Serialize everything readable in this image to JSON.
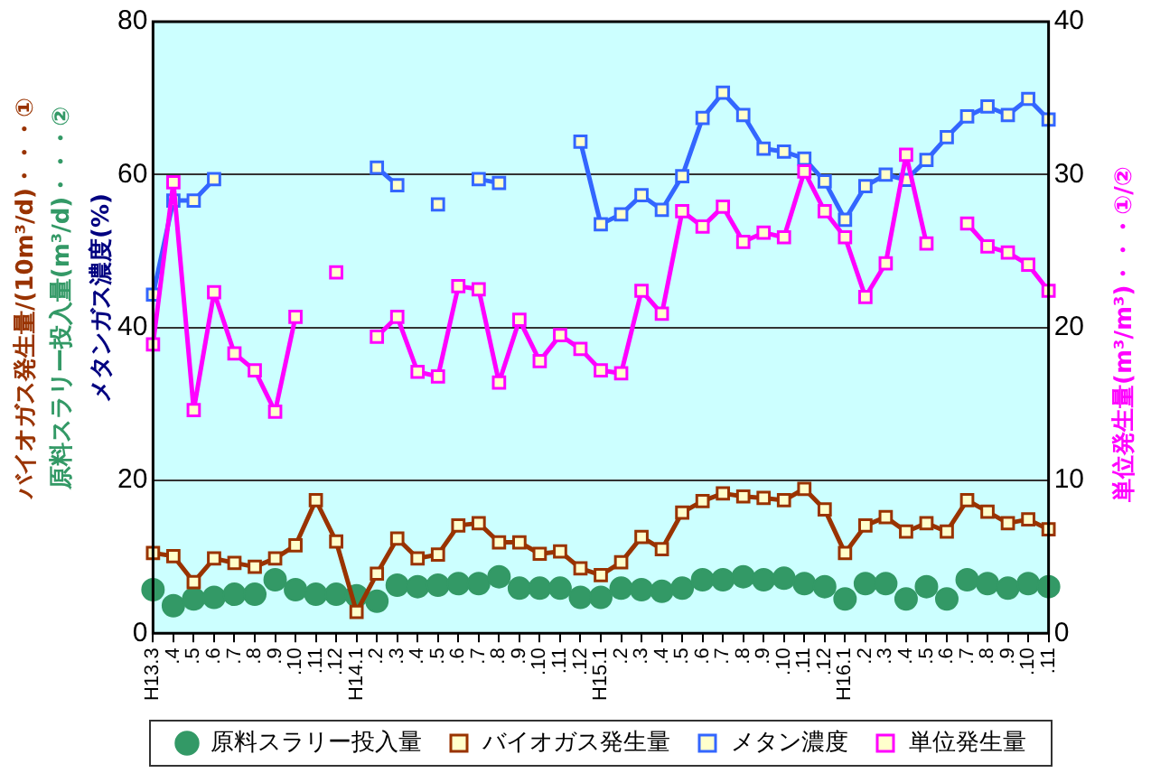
{
  "chart_data": {
    "type": "line",
    "ylabel": [
      "バイオガス発生量/(10m³/d)・・・①",
      "原料スラリー投入量(m³/d)・・・②",
      "メタンガス濃度(%)"
    ],
    "y2label": "単位発生量(m³/m³)・・・①/②",
    "categories": [
      "H13.3",
      ".4",
      ".5",
      ".6",
      ".7",
      ".8",
      ".9",
      ".10",
      ".11",
      ".12",
      "H14.1",
      ".2",
      ".3",
      ".4",
      ".5",
      ".6",
      ".7",
      ".8",
      ".9",
      ".10",
      ".11",
      ".12",
      "H15.1",
      ".2",
      ".3",
      ".4",
      ".5",
      ".6",
      ".7",
      ".8",
      ".9",
      ".10",
      ".11",
      ".12",
      "H16.1",
      ".2",
      ".3",
      ".4",
      ".5",
      ".6",
      ".7",
      ".8",
      ".9",
      ".10",
      ".11"
    ],
    "ylim": [
      0,
      80
    ],
    "yticks": [
      0,
      20,
      40,
      60,
      80
    ],
    "y2lim": [
      0,
      40
    ],
    "y2ticks": [
      0,
      10,
      20,
      30,
      40
    ],
    "grid": "y",
    "legend": "bottom",
    "series": [
      {
        "name": "原料スラリー投入量",
        "type": "scatter",
        "marker": "circle",
        "color": "#339966",
        "values": [
          5.7,
          3.6,
          4.5,
          4.7,
          5.1,
          5.1,
          7.0,
          5.7,
          5.1,
          5.1,
          4.9,
          4.2,
          6.3,
          6.1,
          6.3,
          6.5,
          6.5,
          7.4,
          5.9,
          5.9,
          5.9,
          4.7,
          4.7,
          5.9,
          5.7,
          5.5,
          5.9,
          7.0,
          7.0,
          7.4,
          7.0,
          7.2,
          6.5,
          6.1,
          4.5,
          6.5,
          6.5,
          4.5,
          6.1,
          4.5,
          7.0,
          6.5,
          5.9,
          6.5,
          6.1
        ]
      },
      {
        "name": "バイオガス発生量",
        "type": "line",
        "marker": "square",
        "color": "#993300",
        "values": [
          10.5,
          10.1,
          6.7,
          9.8,
          9.2,
          8.7,
          9.8,
          11.5,
          17.4,
          12.0,
          2.8,
          7.8,
          12.4,
          9.8,
          10.3,
          14.1,
          14.4,
          11.9,
          11.9,
          10.4,
          10.7,
          8.5,
          7.6,
          9.3,
          12.6,
          11.0,
          15.8,
          17.3,
          18.3,
          17.9,
          17.7,
          17.4,
          18.9,
          16.2,
          10.5,
          14.1,
          15.2,
          13.3,
          14.4,
          13.3,
          17.4,
          15.9,
          14.4,
          14.9,
          13.6
        ]
      },
      {
        "name": "メタン濃度",
        "type": "line",
        "marker": "square",
        "color": "#3366ff",
        "values": [
          44.3,
          56.6,
          56.6,
          59.4,
          null,
          null,
          null,
          null,
          null,
          null,
          null,
          60.9,
          58.6,
          null,
          56.1,
          null,
          59.4,
          58.9,
          null,
          null,
          null,
          64.3,
          53.5,
          54.8,
          57.3,
          55.4,
          59.8,
          67.4,
          70.7,
          67.8,
          63.4,
          63.0,
          62.1,
          59.1,
          54.1,
          58.5,
          60.0,
          59.3,
          61.9,
          64.9,
          67.6,
          68.9,
          67.8,
          69.9,
          67.2
        ]
      },
      {
        "name": "単位発生量",
        "type": "line",
        "marker": "square",
        "axis": "y2",
        "color": "#ff00ff",
        "values": [
          18.9,
          29.5,
          14.6,
          22.3,
          18.3,
          17.2,
          14.5,
          20.7,
          null,
          23.6,
          null,
          19.4,
          20.7,
          17.1,
          16.8,
          22.7,
          22.5,
          16.4,
          20.5,
          17.8,
          19.5,
          18.6,
          17.2,
          17.0,
          22.4,
          20.9,
          27.6,
          26.6,
          27.9,
          25.6,
          26.2,
          25.9,
          30.2,
          27.6,
          25.9,
          22.0,
          24.2,
          31.3,
          25.5,
          null,
          26.8,
          25.3,
          24.9,
          24.1,
          22.4
        ]
      }
    ]
  }
}
